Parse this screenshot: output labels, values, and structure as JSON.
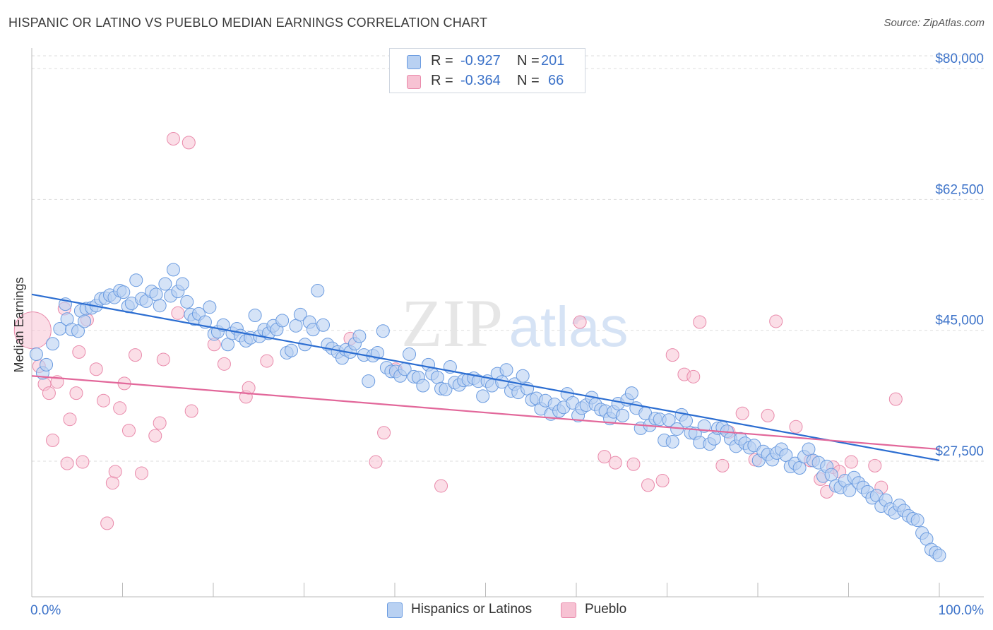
{
  "title": "HISPANIC OR LATINO VS PUEBLO MEDIAN EARNINGS CORRELATION CHART",
  "source": "Source: ZipAtlas.com",
  "watermark": {
    "left": "ZIP",
    "right": "atlas"
  },
  "legend_top": {
    "rows": [
      {
        "r_label": "R =",
        "r_value": "-0.927",
        "n_label": "N =",
        "n_value": "201"
      },
      {
        "r_label": "R =",
        "r_value": "-0.364",
        "n_label": "N =",
        "n_value": "66"
      }
    ]
  },
  "legend_bottom": {
    "series1": "Hispanics or Latinos",
    "series2": "Pueblo"
  },
  "colors": {
    "blue_fill": "#b9d1f2",
    "blue_stroke": "#6a9be0",
    "blue_line": "#2b6dd1",
    "pink_fill": "#f7c2d3",
    "pink_stroke": "#e98aab",
    "pink_line": "#e2679a",
    "axis_text": "#3d73c9",
    "grid": "#dddddd"
  },
  "chart_data": {
    "type": "scatter",
    "title": "HISPANIC OR LATINO VS PUEBLO MEDIAN EARNINGS CORRELATION CHART",
    "xlabel": "",
    "ylabel": "Median Earnings",
    "x_tick_labels": [
      "0.0%",
      "100.0%"
    ],
    "y_tick_labels": [
      "$27,500",
      "$45,000",
      "$62,500",
      "$80,000"
    ],
    "y_ticks": [
      27500,
      45000,
      62500,
      80000
    ],
    "xlim": [
      0,
      100
    ],
    "ylim": [
      10000,
      83000
    ],
    "grid": true,
    "legend_placement": "bottom",
    "series": [
      {
        "name": "Hispanics or Latinos",
        "r": -0.927,
        "n": 201,
        "trend": {
          "x": [
            0,
            100
          ],
          "y": [
            49800,
            27600
          ]
        },
        "points": [
          [
            0.5,
            41.8
          ],
          [
            1.2,
            39.3
          ],
          [
            1.6,
            40.4
          ],
          [
            2.3,
            43.2
          ],
          [
            3.1,
            45.2
          ],
          [
            3.7,
            48.5
          ],
          [
            3.9,
            46.5
          ],
          [
            4.4,
            45.1
          ],
          [
            5.1,
            44.9
          ],
          [
            5.4,
            47.6
          ],
          [
            5.8,
            46.2
          ],
          [
            6.0,
            47.9
          ],
          [
            6.6,
            48.0
          ],
          [
            7.1,
            48.3
          ],
          [
            7.6,
            49.2
          ],
          [
            8.1,
            49.3
          ],
          [
            8.6,
            49.7
          ],
          [
            9.1,
            49.4
          ],
          [
            9.7,
            50.3
          ],
          [
            10.1,
            50.1
          ],
          [
            10.6,
            48.2
          ],
          [
            11.0,
            48.6
          ],
          [
            11.5,
            51.7
          ],
          [
            12.1,
            49.2
          ],
          [
            12.6,
            48.9
          ],
          [
            13.2,
            50.2
          ],
          [
            13.7,
            49.8
          ],
          [
            14.1,
            48.3
          ],
          [
            14.7,
            51.2
          ],
          [
            15.3,
            49.6
          ],
          [
            15.6,
            53.1
          ],
          [
            16.1,
            50.2
          ],
          [
            16.6,
            51.2
          ],
          [
            17.1,
            48.8
          ],
          [
            17.5,
            47.1
          ],
          [
            17.9,
            46.5
          ],
          [
            18.4,
            47.2
          ],
          [
            19.1,
            46.1
          ],
          [
            19.6,
            48.1
          ],
          [
            20.1,
            44.5
          ],
          [
            20.5,
            44.8
          ],
          [
            21.1,
            45.7
          ],
          [
            21.6,
            43.1
          ],
          [
            22.1,
            44.6
          ],
          [
            22.6,
            45.2
          ],
          [
            23.0,
            44.3
          ],
          [
            23.6,
            43.6
          ],
          [
            24.1,
            44.0
          ],
          [
            24.6,
            47.0
          ],
          [
            25.1,
            44.2
          ],
          [
            25.6,
            45.1
          ],
          [
            26.1,
            44.6
          ],
          [
            26.6,
            45.6
          ],
          [
            27.0,
            45.1
          ],
          [
            27.6,
            46.3
          ],
          [
            28.1,
            42.0
          ],
          [
            28.6,
            42.3
          ],
          [
            29.1,
            45.6
          ],
          [
            29.6,
            47.1
          ],
          [
            30.1,
            43.1
          ],
          [
            30.6,
            46.1
          ],
          [
            31.0,
            45.1
          ],
          [
            31.5,
            50.3
          ],
          [
            32.1,
            45.7
          ],
          [
            32.6,
            43.1
          ],
          [
            33.1,
            42.6
          ],
          [
            33.7,
            42.1
          ],
          [
            34.2,
            41.3
          ],
          [
            34.6,
            42.4
          ],
          [
            35.1,
            42.1
          ],
          [
            35.6,
            43.2
          ],
          [
            36.1,
            44.2
          ],
          [
            36.6,
            41.7
          ],
          [
            37.1,
            38.2
          ],
          [
            37.6,
            41.6
          ],
          [
            38.1,
            42.0
          ],
          [
            38.7,
            44.9
          ],
          [
            39.1,
            40.0
          ],
          [
            39.6,
            39.5
          ],
          [
            40.1,
            39.5
          ],
          [
            40.6,
            38.9
          ],
          [
            41.1,
            39.8
          ],
          [
            41.6,
            41.8
          ],
          [
            42.1,
            38.8
          ],
          [
            42.6,
            38.7
          ],
          [
            43.1,
            37.6
          ],
          [
            43.7,
            40.4
          ],
          [
            44.1,
            39.2
          ],
          [
            44.7,
            38.7
          ],
          [
            45.1,
            37.2
          ],
          [
            45.6,
            37.1
          ],
          [
            46.1,
            40.1
          ],
          [
            46.6,
            38.0
          ],
          [
            47.1,
            37.7
          ],
          [
            47.6,
            38.3
          ],
          [
            48.1,
            38.4
          ],
          [
            48.7,
            38.6
          ],
          [
            49.2,
            38.2
          ],
          [
            49.7,
            36.2
          ],
          [
            50.2,
            38.2
          ],
          [
            50.7,
            37.6
          ],
          [
            51.3,
            39.2
          ],
          [
            51.8,
            38.1
          ],
          [
            52.3,
            39.7
          ],
          [
            52.8,
            36.9
          ],
          [
            53.2,
            37.8
          ],
          [
            53.6,
            36.7
          ],
          [
            54.1,
            38.9
          ],
          [
            54.6,
            37.2
          ],
          [
            55.1,
            35.7
          ],
          [
            55.6,
            35.9
          ],
          [
            56.1,
            34.5
          ],
          [
            56.6,
            35.6
          ],
          [
            57.2,
            33.8
          ],
          [
            57.6,
            35.1
          ],
          [
            58.1,
            34.2
          ],
          [
            58.6,
            34.7
          ],
          [
            59.0,
            36.5
          ],
          [
            59.6,
            35.3
          ],
          [
            60.2,
            33.6
          ],
          [
            60.6,
            34.6
          ],
          [
            61.1,
            35.0
          ],
          [
            61.7,
            36.0
          ],
          [
            62.1,
            35.1
          ],
          [
            62.7,
            34.4
          ],
          [
            63.2,
            34.2
          ],
          [
            63.7,
            33.2
          ],
          [
            64.1,
            34.1
          ],
          [
            64.6,
            35.2
          ],
          [
            65.1,
            33.6
          ],
          [
            65.6,
            35.7
          ],
          [
            66.1,
            36.6
          ],
          [
            66.6,
            34.6
          ],
          [
            67.1,
            31.9
          ],
          [
            67.6,
            33.9
          ],
          [
            68.1,
            32.3
          ],
          [
            68.7,
            33.2
          ],
          [
            69.2,
            33.1
          ],
          [
            69.7,
            30.3
          ],
          [
            70.2,
            33.0
          ],
          [
            70.6,
            30.1
          ],
          [
            71.1,
            31.8
          ],
          [
            71.6,
            33.7
          ],
          [
            72.1,
            32.9
          ],
          [
            72.6,
            31.3
          ],
          [
            73.1,
            31.2
          ],
          [
            73.6,
            30.0
          ],
          [
            74.1,
            32.2
          ],
          [
            74.7,
            29.8
          ],
          [
            75.2,
            30.5
          ],
          [
            75.6,
            31.9
          ],
          [
            76.1,
            32.0
          ],
          [
            76.6,
            31.5
          ],
          [
            77.0,
            30.5
          ],
          [
            77.6,
            29.5
          ],
          [
            78.1,
            30.5
          ],
          [
            78.6,
            29.9
          ],
          [
            79.1,
            29.3
          ],
          [
            79.6,
            29.6
          ],
          [
            80.1,
            27.6
          ],
          [
            80.6,
            28.8
          ],
          [
            81.1,
            28.4
          ],
          [
            81.6,
            27.7
          ],
          [
            82.1,
            28.6
          ],
          [
            82.6,
            29.1
          ],
          [
            83.1,
            28.3
          ],
          [
            83.6,
            26.8
          ],
          [
            84.1,
            27.2
          ],
          [
            84.6,
            26.6
          ],
          [
            85.1,
            28.1
          ],
          [
            85.6,
            29.1
          ],
          [
            86.1,
            27.6
          ],
          [
            86.7,
            27.3
          ],
          [
            87.2,
            25.5
          ],
          [
            87.6,
            26.8
          ],
          [
            88.1,
            25.7
          ],
          [
            88.6,
            24.2
          ],
          [
            89.1,
            24.0
          ],
          [
            89.6,
            24.9
          ],
          [
            90.1,
            23.6
          ],
          [
            90.6,
            25.3
          ],
          [
            91.1,
            24.6
          ],
          [
            91.6,
            24.0
          ],
          [
            92.1,
            23.4
          ],
          [
            92.6,
            22.6
          ],
          [
            93.1,
            22.9
          ],
          [
            93.6,
            21.5
          ],
          [
            94.1,
            22.3
          ],
          [
            94.6,
            21.1
          ],
          [
            95.1,
            20.6
          ],
          [
            95.6,
            21.6
          ],
          [
            96.1,
            20.9
          ],
          [
            96.6,
            20.2
          ],
          [
            97.1,
            19.8
          ],
          [
            97.6,
            19.6
          ],
          [
            98.1,
            17.9
          ],
          [
            98.6,
            17.1
          ],
          [
            99.1,
            15.7
          ],
          [
            99.6,
            15.3
          ],
          [
            100.0,
            14.9
          ]
        ]
      },
      {
        "name": "Pueblo",
        "r": -0.364,
        "n": 66,
        "trend": {
          "x": [
            0,
            100
          ],
          "y": [
            38900,
            29100
          ]
        },
        "points": [
          [
            0.1,
            45.0
          ],
          [
            0.8,
            40.2
          ],
          [
            1.4,
            37.8
          ],
          [
            1.9,
            36.6
          ],
          [
            2.3,
            30.3
          ],
          [
            2.8,
            38.1
          ],
          [
            3.6,
            47.9
          ],
          [
            3.9,
            27.2
          ],
          [
            4.2,
            33.1
          ],
          [
            4.9,
            36.6
          ],
          [
            5.2,
            42.1
          ],
          [
            5.6,
            27.4
          ],
          [
            6.1,
            46.4
          ],
          [
            7.1,
            39.8
          ],
          [
            7.9,
            35.6
          ],
          [
            8.3,
            19.2
          ],
          [
            8.9,
            24.6
          ],
          [
            9.2,
            26.1
          ],
          [
            9.7,
            34.6
          ],
          [
            10.2,
            37.9
          ],
          [
            10.7,
            31.6
          ],
          [
            11.4,
            41.7
          ],
          [
            12.1,
            25.9
          ],
          [
            13.6,
            30.9
          ],
          [
            14.1,
            32.6
          ],
          [
            14.5,
            41.1
          ],
          [
            15.6,
            70.6
          ],
          [
            16.1,
            47.3
          ],
          [
            17.3,
            70.1
          ],
          [
            17.6,
            34.2
          ],
          [
            20.1,
            43.1
          ],
          [
            21.2,
            40.5
          ],
          [
            23.6,
            36.1
          ],
          [
            23.9,
            37.3
          ],
          [
            25.9,
            40.9
          ],
          [
            35.1,
            43.9
          ],
          [
            37.9,
            27.4
          ],
          [
            38.8,
            31.3
          ],
          [
            40.1,
            39.8
          ],
          [
            45.1,
            24.2
          ],
          [
            60.4,
            46.1
          ],
          [
            63.1,
            28.1
          ],
          [
            64.3,
            27.3
          ],
          [
            66.3,
            27.1
          ],
          [
            67.9,
            24.3
          ],
          [
            69.5,
            24.9
          ],
          [
            70.6,
            41.7
          ],
          [
            71.9,
            39.1
          ],
          [
            72.9,
            38.8
          ],
          [
            73.6,
            46.1
          ],
          [
            76.1,
            26.9
          ],
          [
            76.8,
            31.4
          ],
          [
            78.3,
            33.9
          ],
          [
            79.7,
            27.7
          ],
          [
            81.1,
            33.6
          ],
          [
            82.0,
            46.2
          ],
          [
            84.2,
            32.1
          ],
          [
            85.8,
            27.6
          ],
          [
            86.9,
            25.1
          ],
          [
            87.6,
            23.4
          ],
          [
            88.3,
            26.7
          ],
          [
            89.0,
            26.1
          ],
          [
            90.3,
            27.4
          ],
          [
            92.9,
            26.9
          ],
          [
            93.6,
            24.0
          ],
          [
            95.2,
            35.8
          ]
        ]
      }
    ]
  }
}
